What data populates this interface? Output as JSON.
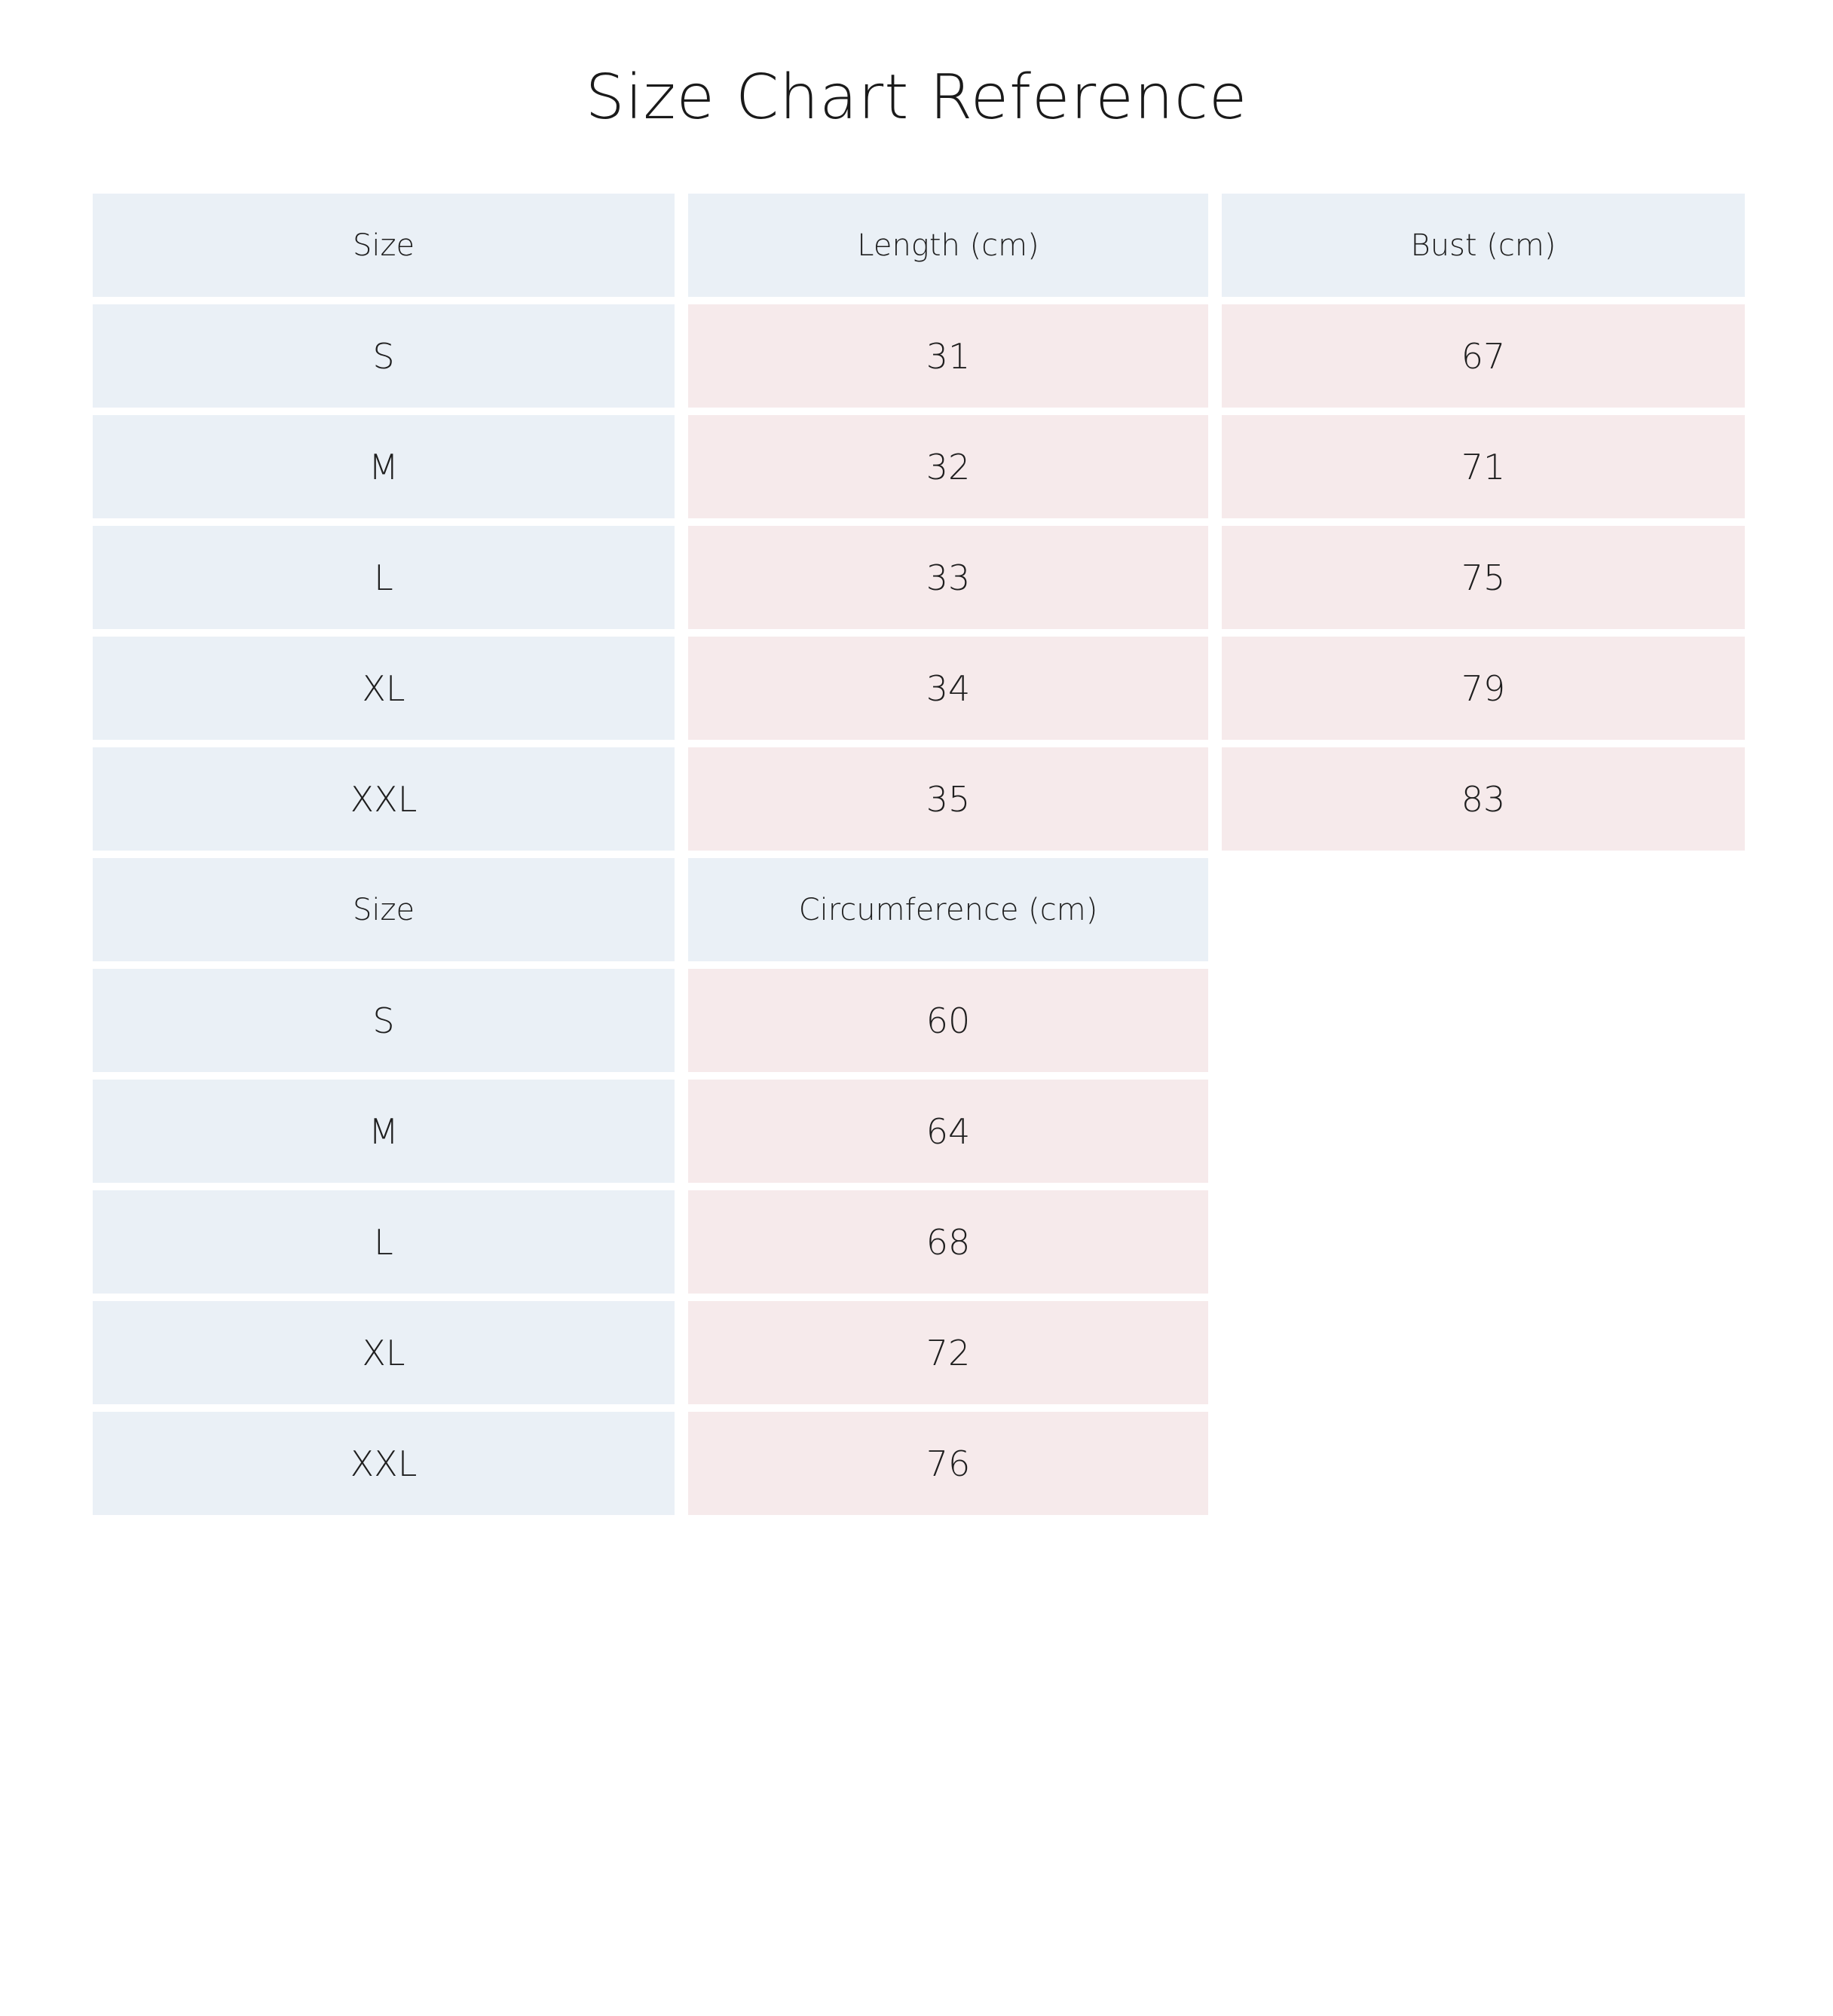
{
  "title": "Size Chart Reference",
  "colors": {
    "header_bg": "#eaf0f6",
    "size_bg": "#eaf0f6",
    "value_bg": "#f6eaeb"
  },
  "table1": {
    "headers": [
      "Size",
      "Length (cm)",
      "Bust (cm)"
    ],
    "rows": [
      {
        "size": "S",
        "length": "31",
        "bust": "67"
      },
      {
        "size": "M",
        "length": "32",
        "bust": "71"
      },
      {
        "size": "L",
        "length": "33",
        "bust": "75"
      },
      {
        "size": "XL",
        "length": "34",
        "bust": "79"
      },
      {
        "size": "XXL",
        "length": "35",
        "bust": "83"
      }
    ]
  },
  "table2": {
    "headers": [
      "Size",
      "Circumference (cm)"
    ],
    "rows": [
      {
        "size": "S",
        "circumference": "60"
      },
      {
        "size": "M",
        "circumference": "64"
      },
      {
        "size": "L",
        "circumference": "68"
      },
      {
        "size": "XL",
        "circumference": "72"
      },
      {
        "size": "XXL",
        "circumference": "76"
      }
    ]
  }
}
